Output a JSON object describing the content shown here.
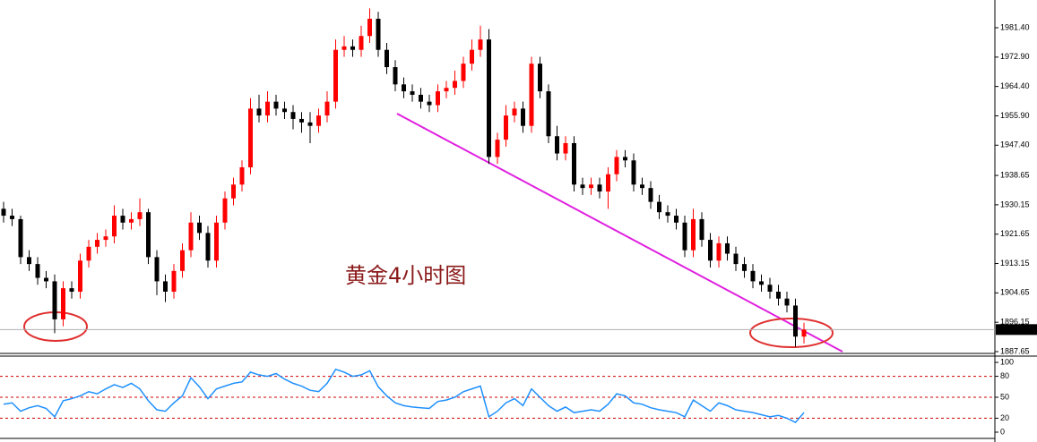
{
  "chart_data": [
    {
      "type": "candlestick",
      "annotation": "黄金4小时图",
      "up_color": "#ff0000",
      "down_color": "#000000",
      "ylim": [
        1887.13,
        1989.43
      ],
      "yticks": [
        {
          "value": 1981.4,
          "label": "1981.40"
        },
        {
          "value": 1972.9,
          "label": "1972.90"
        },
        {
          "value": 1964.4,
          "label": "1964.40"
        },
        {
          "value": 1955.9,
          "label": "1955.90"
        },
        {
          "value": 1947.4,
          "label": "1947.40"
        },
        {
          "value": 1938.65,
          "label": "1938.65"
        },
        {
          "value": 1930.15,
          "label": "1930.15"
        },
        {
          "value": 1921.65,
          "label": "1921.65"
        },
        {
          "value": 1913.15,
          "label": "1913.15"
        },
        {
          "value": 1904.65,
          "label": "1904.65"
        },
        {
          "value": 1896.15,
          "label": "1896.15"
        },
        {
          "value": 1887.65,
          "label": "1887.65"
        }
      ],
      "current_price": 1894.04,
      "open": [
        1929,
        1927,
        1926,
        1915,
        1913,
        1909,
        1908,
        1897,
        1906,
        1905,
        1914,
        1918,
        1920,
        1921,
        1927,
        1925,
        1926,
        1928,
        1915,
        1908,
        1905,
        1911,
        1917,
        1925,
        1922,
        1914,
        1925,
        1932,
        1936,
        1941,
        1958,
        1956,
        1960,
        1958,
        1957,
        1955,
        1954,
        1953,
        1956,
        1960,
        1975,
        1976,
        1975,
        1979,
        1984,
        1975,
        1970,
        1965,
        1963,
        1962,
        1960,
        1959,
        1963,
        1964,
        1966,
        1971,
        1975,
        1978,
        1944,
        1949,
        1956,
        1958,
        1953,
        1971,
        1963,
        1950,
        1945,
        1948,
        1936,
        1935,
        1936,
        1934,
        1939,
        1944,
        1943,
        1936,
        1935,
        1931,
        1928,
        1927,
        1925,
        1917,
        1926,
        1920,
        1914,
        1919,
        1916,
        1913,
        1911,
        1908,
        1907,
        1905,
        1903,
        1901,
        1892
      ],
      "high": [
        1931,
        1929,
        1927,
        1917,
        1915,
        1911,
        1910,
        1908,
        1908,
        1916,
        1920,
        1922,
        1923,
        1930,
        1929,
        1928,
        1932,
        1929,
        1917,
        1910,
        1913,
        1919,
        1928,
        1927,
        1924,
        1927,
        1934,
        1938,
        1943,
        1961,
        1962,
        1963,
        1962,
        1960,
        1959,
        1957,
        1957,
        1958,
        1963,
        1978,
        1979,
        1978,
        1982,
        1987,
        1986,
        1977,
        1972,
        1967,
        1965,
        1964,
        1962,
        1965,
        1966,
        1969,
        1973,
        1978,
        1982,
        1981,
        1951,
        1959,
        1960,
        1960,
        1973,
        1973,
        1965,
        1953,
        1950,
        1950,
        1938,
        1938,
        1938,
        1941,
        1946,
        1946,
        1945,
        1938,
        1937,
        1933,
        1930,
        1929,
        1927,
        1929,
        1928,
        1922,
        1921,
        1921,
        1918,
        1915,
        1913,
        1910,
        1909,
        1907,
        1905,
        1903,
        1896
      ],
      "low": [
        1925,
        1924,
        1913,
        1911,
        1907,
        1906,
        1893,
        1895,
        1903,
        1903,
        1912,
        1916,
        1918,
        1919,
        1923,
        1923,
        1924,
        1913,
        1904,
        1902,
        1903,
        1909,
        1915,
        1920,
        1912,
        1912,
        1923,
        1930,
        1934,
        1939,
        1954,
        1954,
        1956,
        1955,
        1952,
        1951,
        1948,
        1951,
        1954,
        1958,
        1973,
        1973,
        1973,
        1977,
        1973,
        1968,
        1963,
        1961,
        1960,
        1958,
        1957,
        1957,
        1961,
        1962,
        1964,
        1969,
        1973,
        1942,
        1942,
        1947,
        1954,
        1951,
        1951,
        1961,
        1948,
        1943,
        1943,
        1934,
        1933,
        1933,
        1932,
        1929,
        1937,
        1941,
        1934,
        1933,
        1929,
        1926,
        1925,
        1923,
        1915,
        1915,
        1918,
        1912,
        1912,
        1914,
        1911,
        1909,
        1906,
        1905,
        1903,
        1901,
        1899,
        1889,
        1890
      ],
      "close": [
        1927,
        1926,
        1915,
        1913,
        1909,
        1908,
        1897,
        1906,
        1905,
        1914,
        1918,
        1920,
        1921,
        1927,
        1925,
        1926,
        1928,
        1915,
        1908,
        1905,
        1911,
        1917,
        1925,
        1922,
        1914,
        1925,
        1932,
        1936,
        1941,
        1958,
        1956,
        1960,
        1958,
        1957,
        1955,
        1954,
        1953,
        1956,
        1960,
        1975,
        1976,
        1975,
        1979,
        1984,
        1975,
        1970,
        1965,
        1963,
        1962,
        1960,
        1959,
        1963,
        1964,
        1966,
        1971,
        1975,
        1978,
        1944,
        1949,
        1956,
        1958,
        1953,
        1971,
        1963,
        1950,
        1945,
        1948,
        1936,
        1935,
        1936,
        1934,
        1939,
        1944,
        1943,
        1936,
        1935,
        1931,
        1928,
        1927,
        1925,
        1917,
        1926,
        1920,
        1914,
        1919,
        1916,
        1913,
        1911,
        1908,
        1907,
        1905,
        1903,
        1901,
        1892,
        1894.04
      ]
    },
    {
      "type": "line",
      "color": "#1e90ff",
      "level_color": "#d00000",
      "ylim": [
        0,
        100
      ],
      "yticks": [
        100,
        80,
        50,
        20,
        0
      ],
      "values": [
        40,
        42,
        30,
        35,
        38,
        34,
        22,
        45,
        48,
        52,
        58,
        55,
        62,
        68,
        64,
        70,
        62,
        45,
        32,
        30,
        42,
        52,
        78,
        65,
        48,
        62,
        66,
        70,
        72,
        86,
        82,
        80,
        84,
        76,
        70,
        66,
        60,
        58,
        70,
        90,
        86,
        80,
        82,
        88,
        65,
        52,
        42,
        38,
        36,
        35,
        34,
        44,
        46,
        50,
        58,
        62,
        66,
        22,
        30,
        42,
        48,
        38,
        62,
        50,
        38,
        30,
        36,
        28,
        30,
        32,
        30,
        40,
        55,
        52,
        42,
        40,
        35,
        32,
        30,
        28,
        22,
        46,
        38,
        30,
        42,
        38,
        32,
        30,
        28,
        25,
        22,
        24,
        20,
        14,
        28
      ]
    }
  ]
}
